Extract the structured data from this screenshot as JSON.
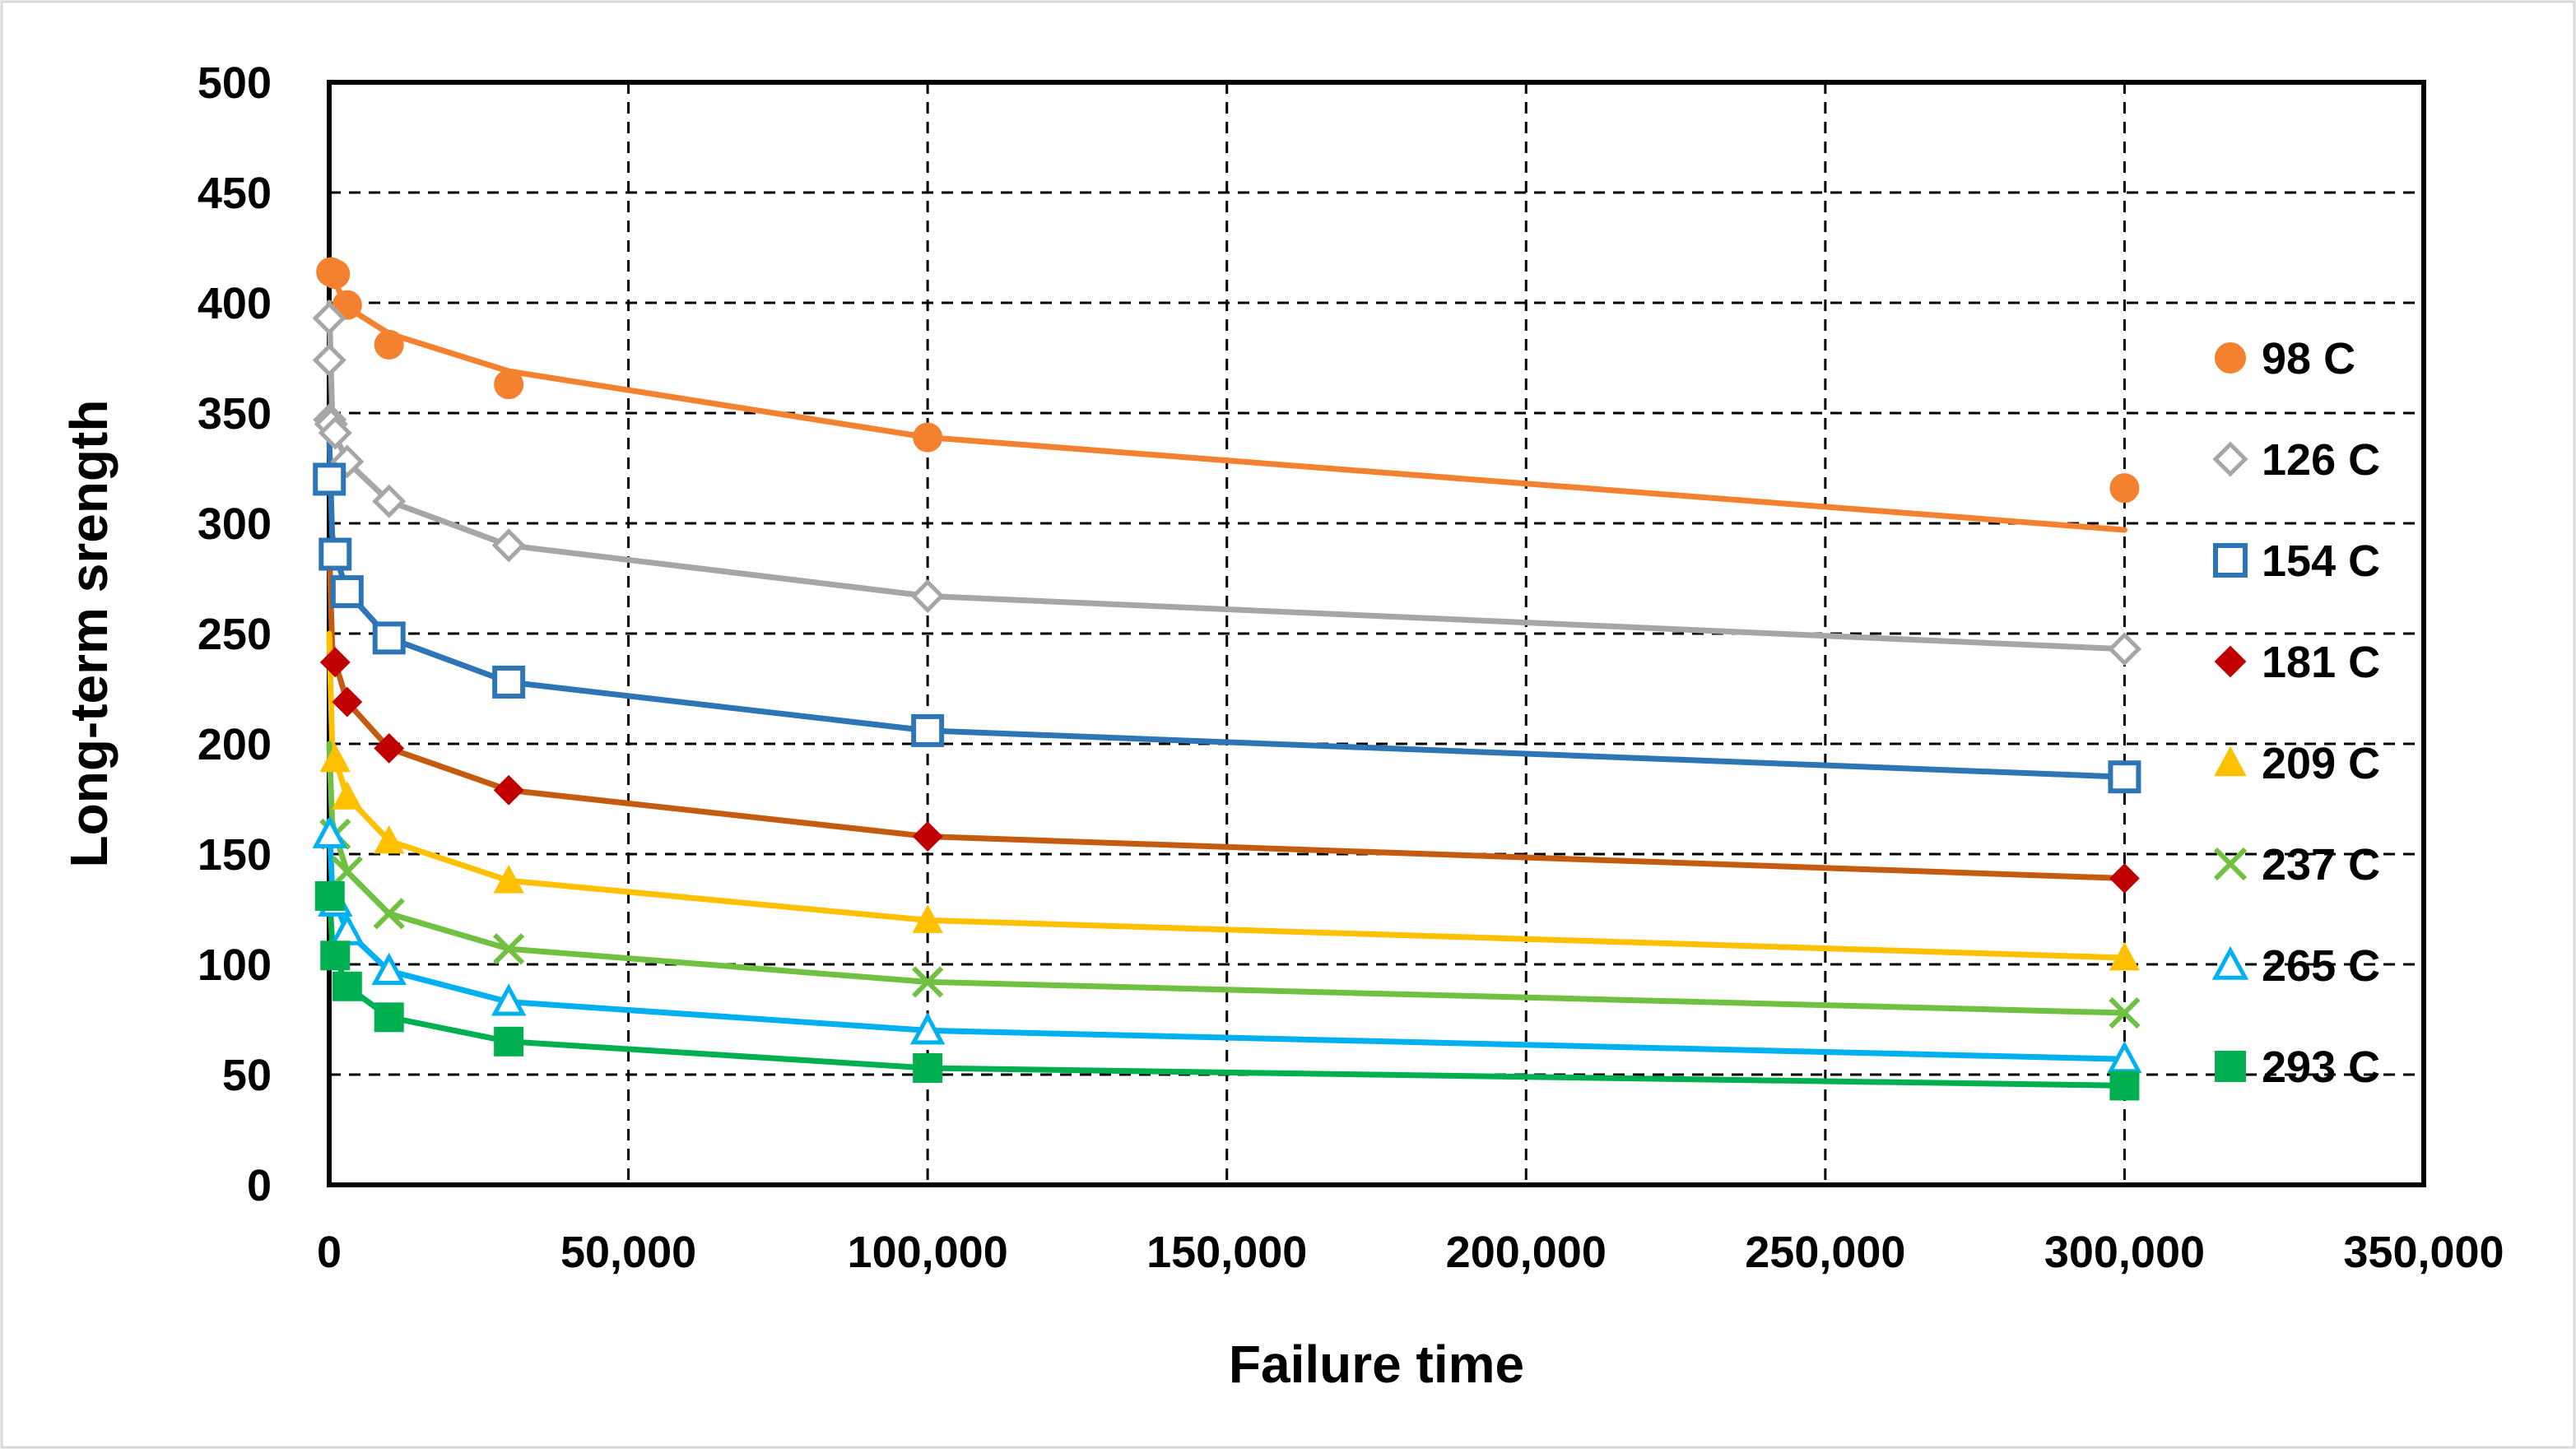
{
  "chart_data": {
    "type": "line",
    "xlabel": "Failure time",
    "ylabel": "Long-term srength",
    "xlim": [
      0,
      350000
    ],
    "ylim": [
      0,
      500
    ],
    "x_ticks": [
      0,
      50000,
      100000,
      150000,
      200000,
      250000,
      300000,
      350000
    ],
    "x_tick_labels": [
      "0",
      "50,000",
      "100,000",
      "150,000",
      "200,000",
      "250,000",
      "300,000",
      "350,000"
    ],
    "y_ticks": [
      0,
      50,
      100,
      150,
      200,
      250,
      300,
      350,
      400,
      450,
      500
    ],
    "y_tick_labels": [
      "0",
      "50",
      "100",
      "150",
      "200",
      "250",
      "300",
      "350",
      "400",
      "450",
      "500"
    ],
    "grid": true,
    "legend_position": "right",
    "x": [
      10,
      30,
      100,
      300,
      1000,
      3000,
      10000,
      30000,
      100000,
      300000
    ],
    "series": [
      {
        "name": "98 C",
        "color": "#f4812f",
        "marker": "circle-filled",
        "markers": [
          [
            300,
            414
          ],
          [
            1000,
            413
          ],
          [
            3000,
            399
          ],
          [
            10000,
            381
          ],
          [
            30000,
            363
          ],
          [
            100000,
            339
          ],
          [
            300000,
            316
          ]
        ],
        "fit": [
          [
            0,
            415
          ],
          [
            1000,
            409
          ],
          [
            3000,
            398
          ],
          [
            10000,
            386
          ],
          [
            30000,
            369
          ],
          [
            100000,
            339
          ],
          [
            300000,
            297
          ]
        ]
      },
      {
        "name": "126 C",
        "color": "#a6a6a6",
        "marker": "diamond-open",
        "markers": [
          [
            10,
            393
          ],
          [
            30,
            374
          ],
          [
            100,
            347
          ],
          [
            300,
            345
          ],
          [
            1000,
            341
          ],
          [
            3000,
            328
          ],
          [
            10000,
            310
          ],
          [
            30000,
            290
          ],
          [
            100000,
            267
          ],
          [
            300000,
            243
          ]
        ],
        "fit": [
          [
            0,
            400
          ],
          [
            500,
            350
          ],
          [
            1000,
            340
          ],
          [
            3000,
            328
          ],
          [
            10000,
            310
          ],
          [
            30000,
            290
          ],
          [
            100000,
            267
          ],
          [
            300000,
            243
          ]
        ]
      },
      {
        "name": "154 C",
        "color": "#2e75b6",
        "marker": "square-open",
        "markers": [
          [
            30,
            320
          ],
          [
            1000,
            286
          ],
          [
            3000,
            269
          ],
          [
            10000,
            248
          ],
          [
            30000,
            228
          ],
          [
            100000,
            206
          ],
          [
            300000,
            185
          ]
        ],
        "fit": [
          [
            0,
            340
          ],
          [
            500,
            295
          ],
          [
            1000,
            286
          ],
          [
            3000,
            269
          ],
          [
            10000,
            248
          ],
          [
            30000,
            228
          ],
          [
            100000,
            206
          ],
          [
            300000,
            185
          ]
        ]
      },
      {
        "name": "181 C",
        "color": "#c00000",
        "line_color": "#c55a11",
        "marker": "diamond-filled",
        "markers": [
          [
            1000,
            237
          ],
          [
            3000,
            219
          ],
          [
            10000,
            198
          ],
          [
            30000,
            179
          ],
          [
            100000,
            158
          ],
          [
            300000,
            139
          ]
        ],
        "fit": [
          [
            0,
            290
          ],
          [
            500,
            245
          ],
          [
            1000,
            237
          ],
          [
            3000,
            219
          ],
          [
            10000,
            198
          ],
          [
            30000,
            179
          ],
          [
            100000,
            158
          ],
          [
            300000,
            139
          ]
        ]
      },
      {
        "name": "209 C",
        "color": "#ffc000",
        "marker": "triangle-filled",
        "markers": [
          [
            1000,
            193
          ],
          [
            3000,
            176
          ],
          [
            10000,
            156
          ],
          [
            30000,
            138
          ],
          [
            100000,
            120
          ],
          [
            300000,
            103
          ]
        ],
        "fit": [
          [
            0,
            250
          ],
          [
            500,
            200
          ],
          [
            1000,
            193
          ],
          [
            3000,
            176
          ],
          [
            10000,
            156
          ],
          [
            30000,
            138
          ],
          [
            100000,
            120
          ],
          [
            300000,
            103
          ]
        ]
      },
      {
        "name": "237 C",
        "color": "#70c041",
        "marker": "x",
        "markers": [
          [
            1000,
            159
          ],
          [
            3000,
            142
          ],
          [
            10000,
            123
          ],
          [
            30000,
            107
          ],
          [
            100000,
            92
          ],
          [
            300000,
            78
          ]
        ],
        "fit": [
          [
            0,
            200
          ],
          [
            500,
            165
          ],
          [
            1000,
            159
          ],
          [
            3000,
            142
          ],
          [
            10000,
            123
          ],
          [
            30000,
            107
          ],
          [
            100000,
            92
          ],
          [
            300000,
            78
          ]
        ]
      },
      {
        "name": "265 C",
        "color": "#00b0f0",
        "marker": "triangle-open",
        "markers": [
          [
            100,
            159
          ],
          [
            1000,
            128
          ],
          [
            3000,
            115
          ],
          [
            10000,
            97
          ],
          [
            30000,
            83
          ],
          [
            100000,
            70
          ],
          [
            300000,
            57
          ]
        ],
        "fit": [
          [
            0,
            165
          ],
          [
            500,
            135
          ],
          [
            1000,
            128
          ],
          [
            3000,
            115
          ],
          [
            10000,
            97
          ],
          [
            30000,
            83
          ],
          [
            100000,
            70
          ],
          [
            300000,
            57
          ]
        ]
      },
      {
        "name": "293 C",
        "color": "#00b050",
        "marker": "square-filled",
        "markers": [
          [
            100,
            131
          ],
          [
            1000,
            104
          ],
          [
            3000,
            90
          ],
          [
            10000,
            76
          ],
          [
            30000,
            65
          ],
          [
            100000,
            53
          ],
          [
            300000,
            45
          ]
        ],
        "fit": [
          [
            0,
            135
          ],
          [
            500,
            110
          ],
          [
            1000,
            104
          ],
          [
            3000,
            90
          ],
          [
            10000,
            76
          ],
          [
            30000,
            65
          ],
          [
            100000,
            53
          ],
          [
            300000,
            45
          ]
        ]
      }
    ]
  }
}
